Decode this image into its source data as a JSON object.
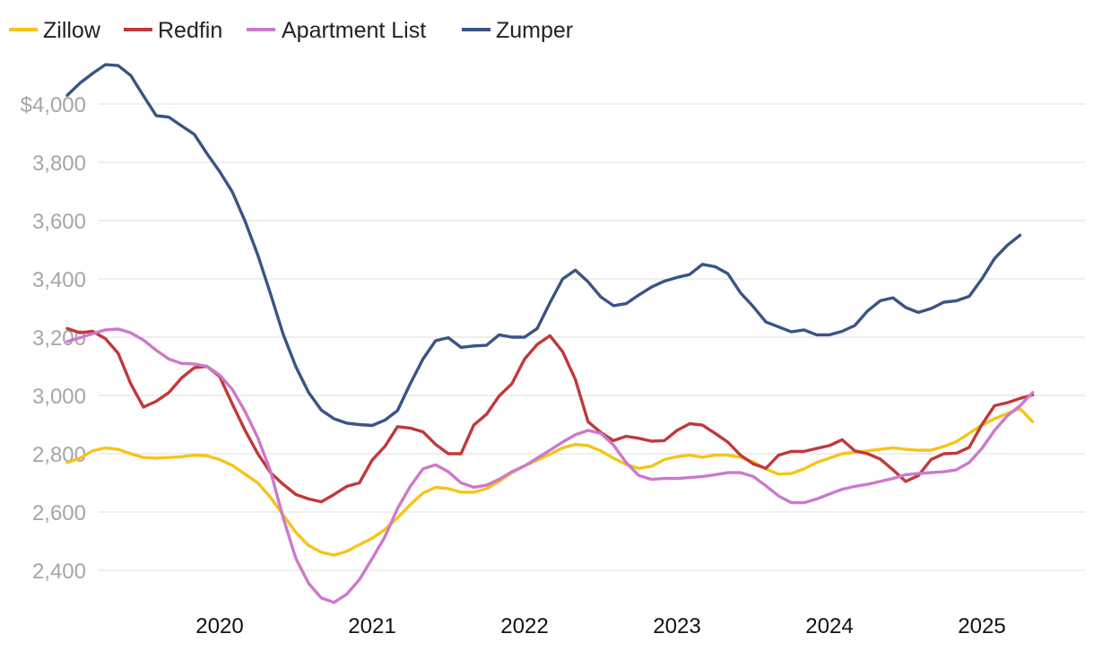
{
  "chart_data": {
    "type": "line",
    "title": "",
    "xlabel": "",
    "ylabel": "",
    "ylim": [
      2300,
      4150
    ],
    "xlim": [
      2019.17,
      2025.75
    ],
    "grid": "horizontal",
    "legend": "top-left",
    "y_ticks": [
      {
        "value": 2400,
        "label": "2,400"
      },
      {
        "value": 2600,
        "label": "2,600"
      },
      {
        "value": 2800,
        "label": "2,800"
      },
      {
        "value": 3000,
        "label": "3,000"
      },
      {
        "value": 3200,
        "label": "3,200"
      },
      {
        "value": 3400,
        "label": "3,400"
      },
      {
        "value": 3600,
        "label": "3,600"
      },
      {
        "value": 3800,
        "label": "3,800"
      },
      {
        "value": 4000,
        "label": "$4,000"
      }
    ],
    "x_ticks": [
      {
        "value": 2020.25,
        "label": "2020"
      },
      {
        "value": 2021.25,
        "label": "2021"
      },
      {
        "value": 2022.25,
        "label": "2022"
      },
      {
        "value": 2023.25,
        "label": "2023"
      },
      {
        "value": 2024.25,
        "label": "2024"
      },
      {
        "value": 2025.25,
        "label": "2025"
      }
    ],
    "x_start": 2019.25,
    "x_step": 0.08333,
    "series": [
      {
        "name": "Zillow",
        "color": "#f5c518",
        "values": [
          2770,
          2785,
          2810,
          2820,
          2815,
          2800,
          2787,
          2785,
          2787,
          2790,
          2795,
          2793,
          2780,
          2760,
          2730,
          2700,
          2650,
          2590,
          2530,
          2485,
          2462,
          2452,
          2465,
          2488,
          2510,
          2540,
          2580,
          2625,
          2665,
          2685,
          2680,
          2668,
          2668,
          2680,
          2705,
          2735,
          2758,
          2778,
          2798,
          2820,
          2832,
          2828,
          2810,
          2785,
          2763,
          2750,
          2757,
          2780,
          2790,
          2795,
          2788,
          2795,
          2795,
          2788,
          2772,
          2748,
          2730,
          2732,
          2748,
          2770,
          2785,
          2800,
          2805,
          2810,
          2815,
          2820,
          2815,
          2812,
          2812,
          2825,
          2842,
          2870,
          2898,
          2920,
          2938,
          2955,
          2910
        ]
      },
      {
        "name": "Redfin",
        "color": "#c0393b",
        "values": [
          3230,
          3215,
          3220,
          3195,
          3145,
          3040,
          2960,
          2980,
          3010,
          3060,
          3095,
          3100,
          3065,
          2970,
          2880,
          2800,
          2735,
          2695,
          2660,
          2645,
          2635,
          2660,
          2688,
          2700,
          2778,
          2825,
          2893,
          2888,
          2875,
          2832,
          2800,
          2800,
          2898,
          2935,
          2998,
          3040,
          3125,
          3175,
          3205,
          3150,
          3055,
          2910,
          2873,
          2845,
          2860,
          2853,
          2843,
          2845,
          2880,
          2903,
          2898,
          2870,
          2840,
          2795,
          2765,
          2750,
          2795,
          2808,
          2808,
          2818,
          2828,
          2848,
          2810,
          2800,
          2782,
          2745,
          2705,
          2725,
          2780,
          2800,
          2802,
          2822,
          2900,
          2965,
          2975,
          2990,
          3002
        ]
      },
      {
        "name": "Apartment List",
        "color": "#cc79cc",
        "values": [
          3185,
          3198,
          3212,
          3225,
          3228,
          3215,
          3190,
          3155,
          3125,
          3110,
          3108,
          3100,
          3070,
          3020,
          2945,
          2855,
          2740,
          2580,
          2440,
          2355,
          2305,
          2290,
          2318,
          2368,
          2440,
          2515,
          2612,
          2688,
          2748,
          2762,
          2738,
          2700,
          2685,
          2692,
          2712,
          2738,
          2758,
          2785,
          2812,
          2840,
          2865,
          2880,
          2870,
          2830,
          2770,
          2725,
          2712,
          2715,
          2715,
          2718,
          2722,
          2728,
          2735,
          2735,
          2722,
          2690,
          2655,
          2632,
          2632,
          2645,
          2662,
          2678,
          2688,
          2695,
          2705,
          2715,
          2728,
          2732,
          2735,
          2738,
          2745,
          2770,
          2818,
          2880,
          2930,
          2965,
          3010
        ]
      },
      {
        "name": "Zumper",
        "color": "#3a5484",
        "values": [
          4030,
          4072,
          4105,
          4135,
          4132,
          4098,
          4028,
          3960,
          3955,
          3925,
          3896,
          3830,
          3768,
          3698,
          3598,
          3482,
          3348,
          3210,
          3098,
          3010,
          2950,
          2920,
          2905,
          2900,
          2897,
          2915,
          2948,
          3040,
          3125,
          3188,
          3198,
          3165,
          3170,
          3172,
          3208,
          3200,
          3200,
          3230,
          3318,
          3400,
          3430,
          3390,
          3338,
          3308,
          3315,
          3345,
          3372,
          3392,
          3405,
          3415,
          3450,
          3442,
          3418,
          3352,
          3305,
          3252,
          3235,
          3218,
          3225,
          3208,
          3208,
          3220,
          3240,
          3290,
          3325,
          3335,
          3302,
          3285,
          3298,
          3320,
          3325,
          3340,
          3400,
          3470,
          3515,
          3550
        ]
      }
    ]
  }
}
